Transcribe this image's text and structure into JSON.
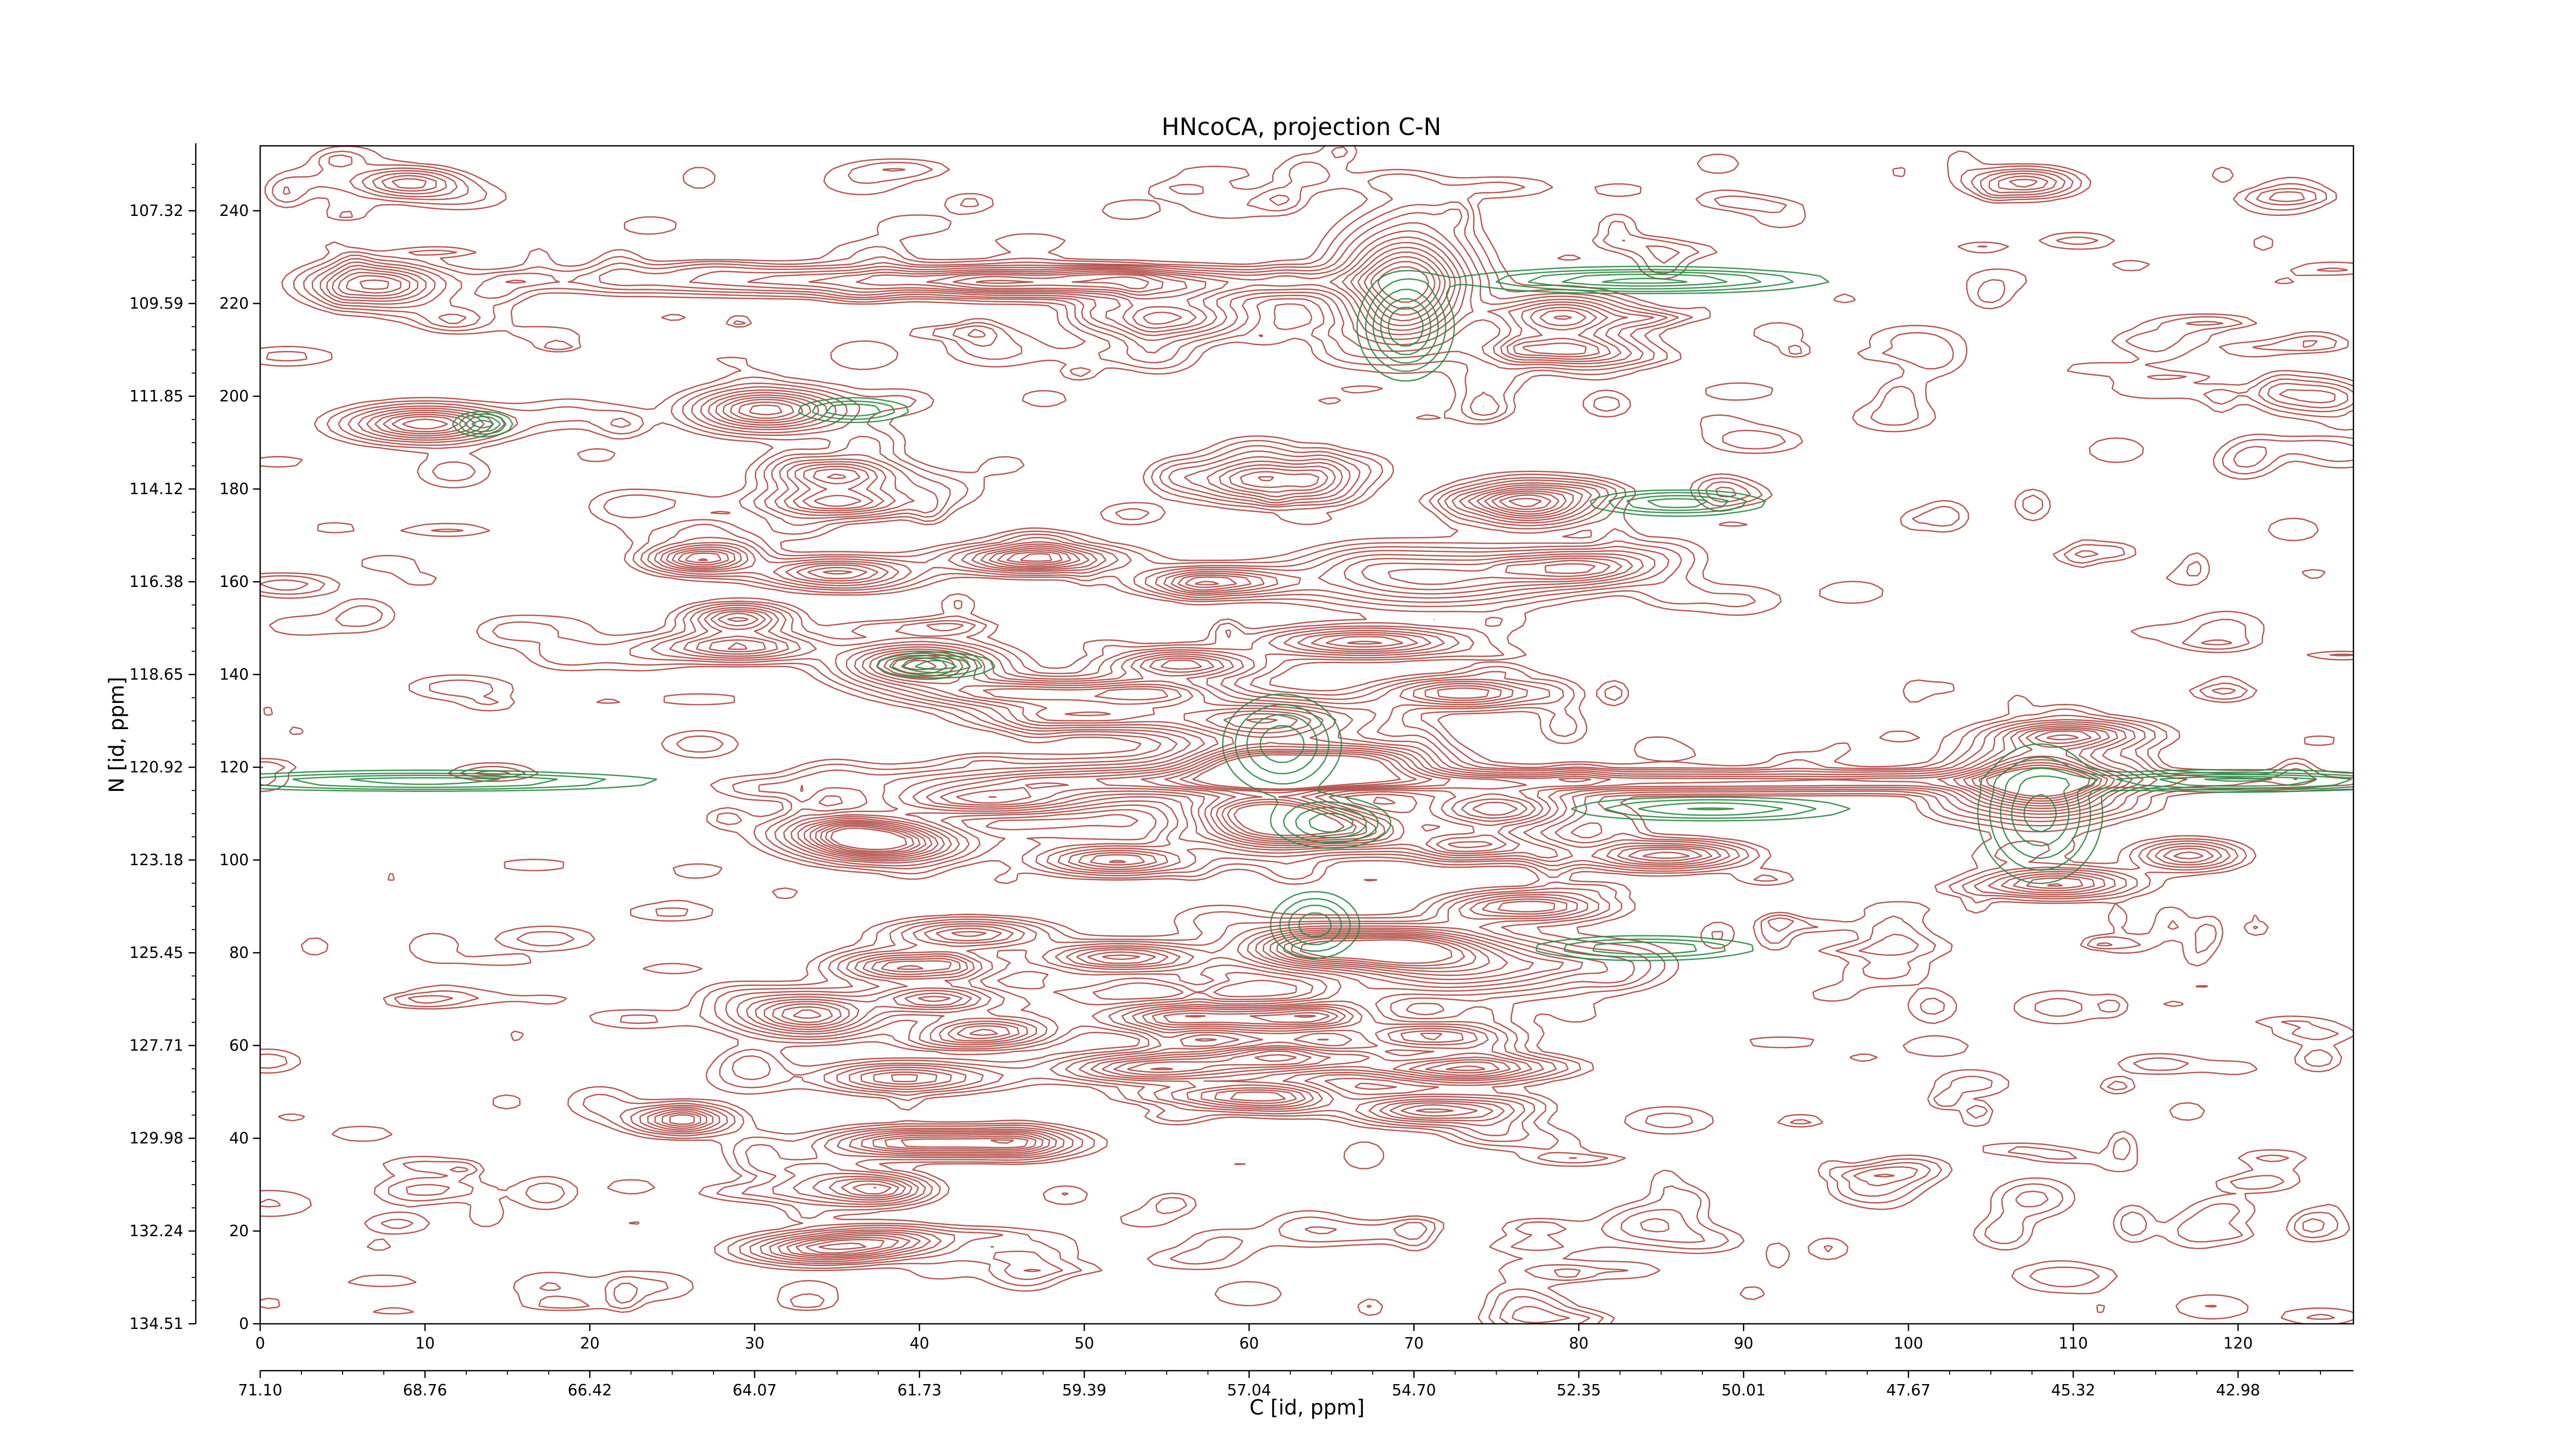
{
  "chart_data": {
    "type": "heatmap",
    "subtype": "contour",
    "title": "HNcoCA, projection C-N",
    "xlabel": "C [id, ppm]",
    "ylabel": "N [id, ppm]",
    "xlim": [
      0,
      127
    ],
    "ylim": [
      0,
      254
    ],
    "x_ticks": [
      0,
      10,
      20,
      30,
      40,
      50,
      60,
      70,
      80,
      90,
      100,
      110,
      120
    ],
    "y_ticks": [
      0,
      20,
      40,
      60,
      80,
      100,
      120,
      140,
      160,
      180,
      200,
      220,
      240
    ],
    "x_ppm_ticks": [
      "71.10",
      "68.76",
      "66.42",
      "64.07",
      "61.73",
      "59.39",
      "57.04",
      "54.70",
      "52.35",
      "50.01",
      "47.67",
      "45.32",
      "42.98"
    ],
    "y_ppm_ticks": [
      "134.51",
      "132.24",
      "129.98",
      "127.71",
      "125.45",
      "123.18",
      "120.92",
      "118.65",
      "116.38",
      "114.12",
      "111.85",
      "109.59",
      "107.32"
    ],
    "colors": {
      "positive": "#a93b34",
      "negative": "#2a8a42",
      "axis": "#000000"
    },
    "grid": false,
    "peaks": [
      {
        "x": 7,
        "y": 224,
        "sx": 2.5,
        "sy": 3,
        "a": 1.1
      },
      {
        "x": 40,
        "y": 225,
        "sx": 14,
        "sy": 2,
        "a": 0.8
      },
      {
        "x": 52,
        "y": 224,
        "sx": 7,
        "sy": 2,
        "a": 0.6
      },
      {
        "x": 69.5,
        "y": 224,
        "sx": 2.5,
        "sy": 8,
        "a": 1.6
      },
      {
        "x": 55,
        "y": 217,
        "sx": 3,
        "sy": 3,
        "a": 1.0
      },
      {
        "x": 79,
        "y": 217,
        "sx": 2.5,
        "sy": 3,
        "a": 1.1
      },
      {
        "x": 79,
        "y": 210,
        "sx": 3,
        "sy": 2,
        "a": 1.0
      },
      {
        "x": 10,
        "y": 194,
        "sx": 3,
        "sy": 2.5,
        "a": 1.2
      },
      {
        "x": 31,
        "y": 197,
        "sx": 3,
        "sy": 3,
        "a": 1.1
      },
      {
        "x": 35,
        "y": 183,
        "sx": 2.5,
        "sy": 2.5,
        "a": 1.1
      },
      {
        "x": 35,
        "y": 177,
        "sx": 3,
        "sy": 2,
        "a": 1.0
      },
      {
        "x": 61,
        "y": 182,
        "sx": 3,
        "sy": 3,
        "a": 1.1
      },
      {
        "x": 77,
        "y": 177,
        "sx": 2.5,
        "sy": 3,
        "a": 1.3
      },
      {
        "x": 26.5,
        "y": 165,
        "sx": 2,
        "sy": 2,
        "a": 1.1
      },
      {
        "x": 35,
        "y": 162,
        "sx": 3,
        "sy": 2,
        "a": 1.0
      },
      {
        "x": 47,
        "y": 165,
        "sx": 3.5,
        "sy": 2,
        "a": 1.0
      },
      {
        "x": 58,
        "y": 160,
        "sx": 3,
        "sy": 2,
        "a": 1.0
      },
      {
        "x": 71,
        "y": 161,
        "sx": 5,
        "sy": 4,
        "a": 0.9
      },
      {
        "x": 80,
        "y": 163,
        "sx": 3,
        "sy": 2.5,
        "a": 1.0
      },
      {
        "x": 29,
        "y": 152,
        "sx": 2,
        "sy": 2,
        "a": 1.0
      },
      {
        "x": 29,
        "y": 146,
        "sx": 3,
        "sy": 2,
        "a": 1.0
      },
      {
        "x": 40,
        "y": 142,
        "sx": 3,
        "sy": 3,
        "a": 1.4
      },
      {
        "x": 56,
        "y": 142,
        "sx": 3,
        "sy": 2,
        "a": 1.0
      },
      {
        "x": 67,
        "y": 147,
        "sx": 4,
        "sy": 2,
        "a": 1.0
      },
      {
        "x": 46,
        "y": 136,
        "sx": 4,
        "sy": 2,
        "a": 1.0
      },
      {
        "x": 54,
        "y": 136,
        "sx": 3,
        "sy": 2,
        "a": 1.0
      },
      {
        "x": 73,
        "y": 136,
        "sx": 3,
        "sy": 2,
        "a": 1.0
      },
      {
        "x": 50,
        "y": 131,
        "sx": 4,
        "sy": 2,
        "a": 0.9
      },
      {
        "x": 61,
        "y": 130,
        "sx": 4,
        "sy": 3,
        "a": 1.2
      },
      {
        "x": 55,
        "y": 117,
        "sx": 10,
        "sy": 3,
        "a": 0.7
      },
      {
        "x": 85,
        "y": 117,
        "sx": 25,
        "sy": 1.5,
        "a": 0.8
      },
      {
        "x": 108,
        "y": 117,
        "sx": 3,
        "sy": 5,
        "a": 1.6
      },
      {
        "x": 110,
        "y": 127,
        "sx": 3,
        "sy": 2,
        "a": 1.0
      },
      {
        "x": 61,
        "y": 120,
        "sx": 3,
        "sy": 3,
        "a": 1.4
      },
      {
        "x": 67,
        "y": 121,
        "sx": 3,
        "sy": 3,
        "a": 1.3
      },
      {
        "x": 44,
        "y": 113,
        "sx": 4,
        "sy": 2,
        "a": 0.9
      },
      {
        "x": 61,
        "y": 111,
        "sx": 3,
        "sy": 2,
        "a": 1.0
      },
      {
        "x": 75,
        "y": 111,
        "sx": 3,
        "sy": 3,
        "a": 1.3
      },
      {
        "x": 36,
        "y": 106,
        "sx": 3,
        "sy": 2.5,
        "a": 1.1
      },
      {
        "x": 61,
        "y": 107,
        "sx": 3,
        "sy": 3,
        "a": 1.3
      },
      {
        "x": 66,
        "y": 107,
        "sx": 3,
        "sy": 3,
        "a": 1.0
      },
      {
        "x": 38,
        "y": 103,
        "sx": 3,
        "sy": 2.5,
        "a": 1.2
      },
      {
        "x": 52,
        "y": 100,
        "sx": 3,
        "sy": 2,
        "a": 1.0
      },
      {
        "x": 74,
        "y": 103,
        "sx": 3,
        "sy": 2,
        "a": 0.9
      },
      {
        "x": 85,
        "y": 101,
        "sx": 3,
        "sy": 2,
        "a": 1.0
      },
      {
        "x": 109,
        "y": 95,
        "sx": 3,
        "sy": 2,
        "a": 1.0
      },
      {
        "x": 77,
        "y": 90,
        "sx": 3,
        "sy": 2,
        "a": 1.0
      },
      {
        "x": 43,
        "y": 84,
        "sx": 3,
        "sy": 2,
        "a": 0.9
      },
      {
        "x": 64,
        "y": 81,
        "sx": 3,
        "sy": 3,
        "a": 1.4
      },
      {
        "x": 70,
        "y": 81,
        "sx": 3,
        "sy": 3,
        "a": 1.1
      },
      {
        "x": 52,
        "y": 79,
        "sx": 3,
        "sy": 2,
        "a": 1.0
      },
      {
        "x": 74,
        "y": 77,
        "sx": 5,
        "sy": 4,
        "a": 0.9
      },
      {
        "x": 40,
        "y": 77,
        "sx": 3,
        "sy": 2,
        "a": 1.0
      },
      {
        "x": 33,
        "y": 67,
        "sx": 3,
        "sy": 3,
        "a": 1.1
      },
      {
        "x": 41,
        "y": 70,
        "sx": 2.5,
        "sy": 2,
        "a": 1.0
      },
      {
        "x": 44,
        "y": 63,
        "sx": 2.5,
        "sy": 2,
        "a": 1.0
      },
      {
        "x": 56,
        "y": 66,
        "sx": 3,
        "sy": 2,
        "a": 1.0
      },
      {
        "x": 63,
        "y": 66,
        "sx": 3,
        "sy": 2,
        "a": 1.0
      },
      {
        "x": 71,
        "y": 62,
        "sx": 3,
        "sy": 2,
        "a": 1.0
      },
      {
        "x": 54,
        "y": 55,
        "sx": 3.5,
        "sy": 2,
        "a": 1.0
      },
      {
        "x": 62,
        "y": 57,
        "sx": 4,
        "sy": 2,
        "a": 1.0
      },
      {
        "x": 73,
        "y": 55,
        "sx": 3,
        "sy": 2,
        "a": 1.0
      },
      {
        "x": 39,
        "y": 53,
        "sx": 3,
        "sy": 2,
        "a": 0.9
      },
      {
        "x": 60,
        "y": 49,
        "sx": 3,
        "sy": 2,
        "a": 1.0
      },
      {
        "x": 71,
        "y": 46,
        "sx": 3,
        "sy": 2,
        "a": 1.0
      },
      {
        "x": 25.5,
        "y": 44,
        "sx": 2,
        "sy": 2,
        "a": 1.0
      },
      {
        "x": 39,
        "y": 39,
        "sx": 3,
        "sy": 2,
        "a": 1.0
      },
      {
        "x": 45,
        "y": 39,
        "sx": 3,
        "sy": 2,
        "a": 1.0
      },
      {
        "x": 37.5,
        "y": 29,
        "sx": 2,
        "sy": 2,
        "a": 1.0
      },
      {
        "x": 34,
        "y": 16,
        "sx": 3,
        "sy": 2,
        "a": 1.0
      },
      {
        "x": 38,
        "y": 18,
        "sx": 3,
        "sy": 2,
        "a": 0.8
      },
      {
        "x": 9,
        "y": 246,
        "sx": 2,
        "sy": 2,
        "a": 0.8
      },
      {
        "x": 107,
        "y": 246,
        "sx": 2,
        "sy": 2,
        "a": 0.8
      },
      {
        "x": 117,
        "y": 101,
        "sx": 2,
        "sy": 2,
        "a": 0.8
      }
    ],
    "negative_peaks": [
      {
        "x": 13.5,
        "y": 194,
        "sx": 1,
        "sy": 1.5,
        "a": 0.6
      },
      {
        "x": 36,
        "y": 197,
        "sx": 2,
        "sy": 1.5,
        "a": 0.5
      },
      {
        "x": 84,
        "y": 225,
        "sx": 6,
        "sy": 1.5,
        "a": 0.7
      },
      {
        "x": 86,
        "y": 177,
        "sx": 3,
        "sy": 1.5,
        "a": 0.6
      },
      {
        "x": 10,
        "y": 117,
        "sx": 8,
        "sy": 1.2,
        "a": 0.6
      },
      {
        "x": 120,
        "y": 117,
        "sx": 6,
        "sy": 1.2,
        "a": 0.7
      },
      {
        "x": 88,
        "y": 111,
        "sx": 5,
        "sy": 1.5,
        "a": 0.5
      },
      {
        "x": 84,
        "y": 81,
        "sx": 4,
        "sy": 1.5,
        "a": 0.5
      },
      {
        "x": 41,
        "y": 142,
        "sx": 2,
        "sy": 1.5,
        "a": 0.6
      },
      {
        "x": 62,
        "y": 125,
        "sx": 2,
        "sy": 6,
        "a": 0.6
      },
      {
        "x": 69.5,
        "y": 215,
        "sx": 1.5,
        "sy": 6,
        "a": 0.8
      },
      {
        "x": 108,
        "y": 110,
        "sx": 2,
        "sy": 8,
        "a": 0.7
      },
      {
        "x": 64,
        "y": 86,
        "sx": 1.5,
        "sy": 4,
        "a": 0.6
      },
      {
        "x": 65,
        "y": 108,
        "sx": 2,
        "sy": 3,
        "a": 0.6
      }
    ]
  }
}
